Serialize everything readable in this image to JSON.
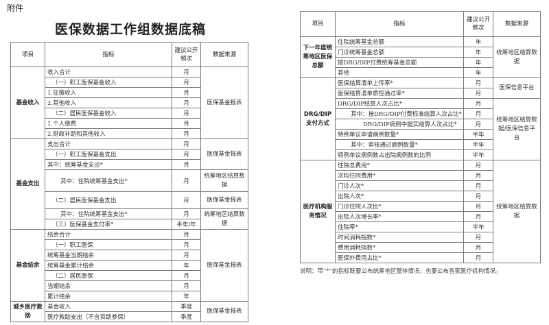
{
  "attachment_label": "附件",
  "title": "医保数据工作组数据底稿",
  "headers": {
    "item": "项目",
    "indicator": "指标",
    "frequency": "建议公开频次",
    "source": "数据来源"
  },
  "left_table": [
    {
      "section": "基金收入",
      "rows": [
        {
          "indicator": "收入合计",
          "frequency": "月",
          "source": "医保基金报表",
          "source_span": 7
        },
        {
          "indicator": "（一）职工医保基金收入",
          "frequency": "月"
        },
        {
          "indicator": "1.征缴收入",
          "frequency": "月"
        },
        {
          "indicator": "2.其他收入",
          "frequency": "月"
        },
        {
          "indicator": "（二）居民医保基金收入",
          "frequency": "月"
        },
        {
          "indicator": "1.个人缴费",
          "frequency": "月"
        },
        {
          "indicator": "2.财政补助和其他收入",
          "frequency": "月"
        }
      ]
    },
    {
      "section": "基金支出",
      "rows": [
        {
          "indicator": "支出合计",
          "frequency": "月",
          "source": "医保基金报表",
          "source_span": 3
        },
        {
          "indicator": "（一）职工医保基金支出",
          "frequency": "月"
        },
        {
          "indicator": "其中：统筹基金支出*",
          "frequency": "月"
        },
        {
          "indicator": "其中：住院统筹基金支出*",
          "frequency": "月",
          "source": "统筹地区结算数据",
          "source_span": 1
        },
        {
          "indicator": "（二）居民医保基金支出",
          "frequency": "月",
          "source": "医保基金报表",
          "source_span": 1
        },
        {
          "indicator": "其中：住院统筹基金支出*",
          "frequency": "月",
          "source": "统筹地区结算数据",
          "source_span": 2
        },
        {
          "indicator": "（三）医保基金支付率*",
          "frequency": "半年/年"
        }
      ]
    },
    {
      "section": "基金结余",
      "rows": [
        {
          "indicator": "结余合计",
          "frequency": "月",
          "source": "医保基金报表",
          "source_span": 7
        },
        {
          "indicator": "（一）职工医保",
          "frequency": "月"
        },
        {
          "indicator": "统筹基金当期结余",
          "frequency": "月"
        },
        {
          "indicator": "统筹基金累计结余",
          "frequency": "年"
        },
        {
          "indicator": "（二）居民医保",
          "frequency": "月"
        },
        {
          "indicator": "当期结余",
          "frequency": "月"
        },
        {
          "indicator": "累计结余",
          "frequency": "年"
        }
      ]
    },
    {
      "section": "城乡医疗救助",
      "rows": [
        {
          "indicator": "基金收入",
          "frequency": "季度",
          "source": "医保基金报表",
          "source_span": 2
        },
        {
          "indicator": "医疗救助支出（不含资助参保）",
          "frequency": "季度"
        }
      ]
    }
  ],
  "right_table": [
    {
      "section": "下一年度统筹地区医保总额",
      "rows": [
        {
          "indicator": "住院统筹基金总额",
          "frequency": "年",
          "source": "统筹地区结算数据",
          "source_span": 4
        },
        {
          "indicator": "门诊统筹基金总额",
          "frequency": "年"
        },
        {
          "indicator": "按DRG/DIP付费统筹基金总额",
          "frequency": "年"
        },
        {
          "indicator": "其他",
          "frequency": "年"
        }
      ]
    },
    {
      "section": "DRG/DIP支付方式",
      "rows": [
        {
          "indicator": "医保结算清单上传率*",
          "frequency": "月",
          "source": "医保信息平台",
          "source_span": 2
        },
        {
          "indicator": "医保结算清单质控通过率*",
          "frequency": "月"
        },
        {
          "indicator": "DRG/DIP结算人次占比*",
          "frequency": "月",
          "source": "统筹地区结算数据/医保信息平台",
          "source_span": 6
        },
        {
          "indicator": "其中：按DRG/DIP付费标准结算人次占比*",
          "frequency": "月"
        },
        {
          "indicator": "DRG/DIP病例中据实结算人次占比*",
          "frequency": "月"
        },
        {
          "indicator": "特例单议申请病例数量*",
          "frequency": "半年"
        },
        {
          "indicator": "其中：审核通过病例数量*",
          "frequency": "半年"
        },
        {
          "indicator": "特例单议病例数占出院病例数的比例",
          "frequency": "半年"
        }
      ]
    },
    {
      "section": "医疗机构服务情况",
      "rows": [
        {
          "indicator": "住院总费用*",
          "frequency": "月",
          "source": "统筹地区结算数据",
          "source_span": 10
        },
        {
          "indicator": "次均住院费用*",
          "frequency": "月"
        },
        {
          "indicator": "门诊人次*",
          "frequency": "月"
        },
        {
          "indicator": "出院人次*",
          "frequency": "月"
        },
        {
          "indicator": "门诊住院人次比*",
          "frequency": "月"
        },
        {
          "indicator": "出院人次增长率*",
          "frequency": "月"
        },
        {
          "indicator": "住院率*",
          "frequency": "半年"
        },
        {
          "indicator": "时间消耗指数*",
          "frequency": "月"
        },
        {
          "indicator": "费用消耗指数*",
          "frequency": "月"
        },
        {
          "indicator": "医保外费用占比*",
          "frequency": "月"
        }
      ]
    }
  ],
  "note": "说明：带“*”的指标既要公布统筹地区整体情况，也要公布各家医疗机构情况。"
}
